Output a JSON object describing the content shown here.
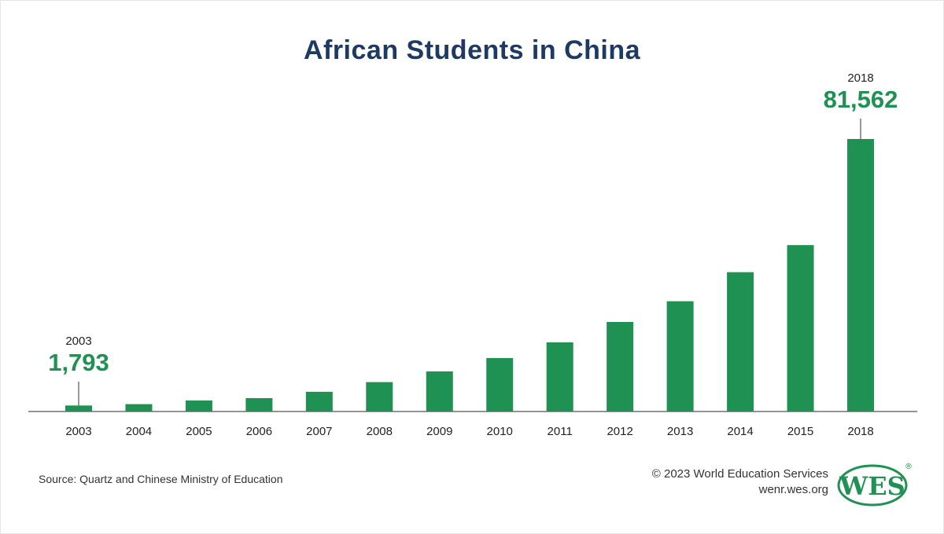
{
  "title": "African Students in China",
  "chart_data": {
    "type": "bar",
    "title": "African Students in China",
    "xlabel": "",
    "ylabel": "",
    "categories": [
      "2003",
      "2004",
      "2005",
      "2006",
      "2007",
      "2008",
      "2009",
      "2010",
      "2011",
      "2012",
      "2013",
      "2014",
      "2015",
      "2018"
    ],
    "values": [
      1793,
      2200,
      3300,
      4000,
      5900,
      8800,
      12000,
      16000,
      20700,
      26800,
      33000,
      41700,
      49800,
      81562
    ],
    "ylim": [
      0,
      81562
    ],
    "grid": false,
    "legend": "none",
    "bar_color": "#1f9152",
    "callouts": [
      {
        "index": 0,
        "year": "2003",
        "value_label": "1,793"
      },
      {
        "index": 13,
        "year": "2018",
        "value_label": "81,562"
      }
    ]
  },
  "footer": {
    "source": "Source: Quartz and Chinese Ministry of Education",
    "copyright": "© 2023 World Education Services",
    "website": "wenr.wes.org"
  },
  "logo": {
    "text": "WES",
    "registered": "®",
    "color": "#1f9152"
  }
}
